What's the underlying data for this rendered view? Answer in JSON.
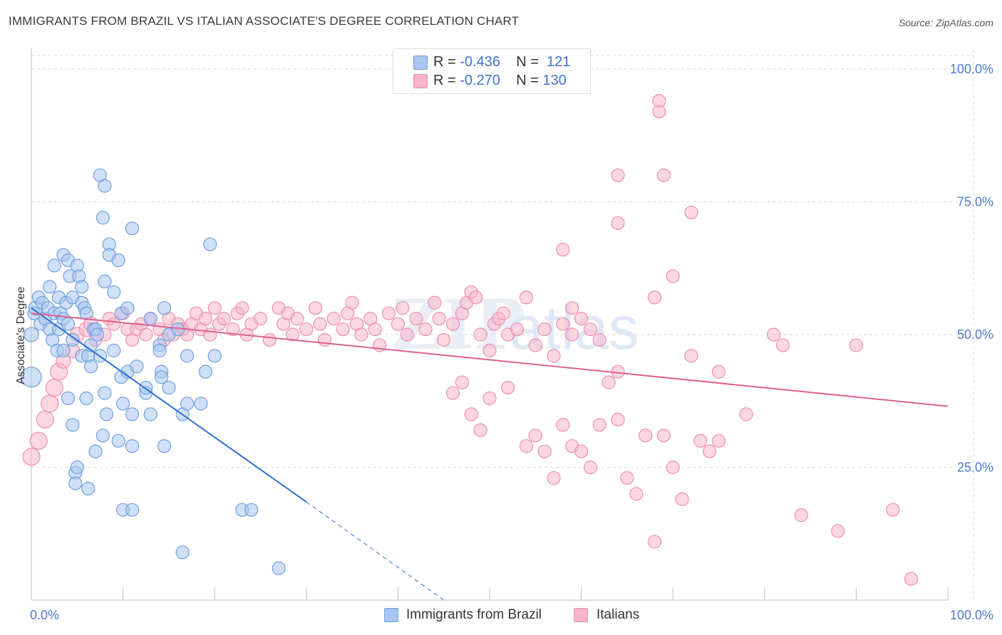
{
  "title": "IMMIGRANTS FROM BRAZIL VS ITALIAN ASSOCIATE'S DEGREE CORRELATION CHART",
  "source": "Source: ZipAtlas.com",
  "watermark": {
    "zip": "ZIP",
    "atlas": "atlas"
  },
  "legend_top": {
    "row1": {
      "r_label": "R = ",
      "r_value": "-0.436",
      "n_label": "N = ",
      "n_value": "121"
    },
    "row2": {
      "r_label": "R = ",
      "r_value": "-0.270",
      "n_label": "N = ",
      "n_value": "130"
    }
  },
  "legend_bottom": {
    "series1": "Immigrants from Brazil",
    "series2": "Italians"
  },
  "colors": {
    "blue_fill": "#a8c6ef",
    "blue_stroke": "#6f9ee0",
    "blue_line": "#2e6fd4",
    "pink_fill": "#f7b6cb",
    "pink_stroke": "#ec8fb0",
    "pink_line": "#e0608e",
    "axis_text": "#4a7bd0",
    "grid": "#d9d9d9"
  },
  "chart_data": {
    "type": "scatter",
    "title": "IMMIGRANTS FROM BRAZIL VS ITALIAN ASSOCIATE'S DEGREE CORRELATION CHART",
    "xlabel": "",
    "ylabel": "Associate's Degree",
    "xlim": [
      0,
      100
    ],
    "ylim": [
      0,
      100
    ],
    "x_tick_labels": {
      "left": "0.0%",
      "right": "100.0%"
    },
    "y_tick_labels": [
      "100.0%",
      "75.0%",
      "50.0%",
      "25.0%"
    ],
    "y_tick_values": [
      100,
      75,
      50,
      25
    ],
    "series": [
      {
        "name": "Immigrants from Brazil",
        "R": -0.436,
        "N": 121,
        "trend": {
          "x0": 0,
          "y0": 55,
          "x1": 30,
          "y1": 18.5,
          "dash_x1": 45,
          "dash_y1": 0
        },
        "points": [
          [
            0,
            42,
            14
          ],
          [
            0,
            50,
            10
          ],
          [
            0.3,
            54,
            9
          ],
          [
            0.5,
            55,
            10
          ],
          [
            0.8,
            57,
            9
          ],
          [
            1,
            52,
            9
          ],
          [
            1.2,
            56,
            9
          ],
          [
            1.5,
            53,
            9
          ],
          [
            1.8,
            55,
            9
          ],
          [
            2,
            51,
            9
          ],
          [
            2,
            59,
            9
          ],
          [
            2.3,
            49,
            9
          ],
          [
            2.5,
            54,
            9
          ],
          [
            2.5,
            63,
            9
          ],
          [
            2.8,
            47,
            9
          ],
          [
            3,
            51,
            9
          ],
          [
            3,
            57,
            9
          ],
          [
            3.2,
            54,
            9
          ],
          [
            3.5,
            47,
            9
          ],
          [
            3.5,
            53,
            9
          ],
          [
            3.5,
            65,
            9
          ],
          [
            3.8,
            56,
            9
          ],
          [
            4,
            38,
            9
          ],
          [
            4,
            64,
            9
          ],
          [
            4,
            52,
            9
          ],
          [
            4.2,
            61,
            9
          ],
          [
            4.5,
            57,
            9
          ],
          [
            4.5,
            33,
            9
          ],
          [
            4.5,
            49,
            9
          ],
          [
            4.8,
            24,
            9
          ],
          [
            4.8,
            22,
            9
          ],
          [
            5,
            25,
            9
          ],
          [
            5,
            63,
            9
          ],
          [
            5.2,
            61,
            9
          ],
          [
            5.5,
            59,
            9
          ],
          [
            5.5,
            46,
            9
          ],
          [
            5.5,
            56,
            9
          ],
          [
            5.8,
            55,
            9
          ],
          [
            6,
            54,
            9
          ],
          [
            6,
            38,
            9
          ],
          [
            6.2,
            46,
            9
          ],
          [
            6.2,
            21,
            9
          ],
          [
            6.5,
            48,
            9
          ],
          [
            6.5,
            44,
            9
          ],
          [
            6.8,
            51,
            9
          ],
          [
            7,
            51,
            9
          ],
          [
            7,
            28,
            9
          ],
          [
            7.2,
            50,
            9
          ],
          [
            7.5,
            46,
            9
          ],
          [
            7.5,
            80,
            9
          ],
          [
            7.8,
            31,
            9
          ],
          [
            7.8,
            72,
            9
          ],
          [
            8,
            78,
            9
          ],
          [
            8,
            60,
            9
          ],
          [
            8,
            39,
            9
          ],
          [
            8.2,
            35,
            9
          ],
          [
            8.5,
            67,
            9
          ],
          [
            8.5,
            65,
            9
          ],
          [
            9,
            47,
            9
          ],
          [
            9,
            58,
            9
          ],
          [
            9.5,
            64,
            9
          ],
          [
            9.5,
            30,
            9
          ],
          [
            9.8,
            54,
            9
          ],
          [
            9.8,
            42,
            9
          ],
          [
            10,
            17,
            9
          ],
          [
            10,
            37,
            9
          ],
          [
            10.5,
            55,
            9
          ],
          [
            10.5,
            43,
            9
          ],
          [
            11,
            35,
            9
          ],
          [
            11,
            70,
            9
          ],
          [
            11,
            29,
            9
          ],
          [
            11,
            17,
            9
          ],
          [
            11.5,
            44,
            9
          ],
          [
            12.5,
            39,
            9
          ],
          [
            12.5,
            40,
            9
          ],
          [
            13,
            35,
            9
          ],
          [
            13,
            53,
            9
          ],
          [
            14,
            48,
            9
          ],
          [
            14,
            47,
            9
          ],
          [
            14.2,
            43,
            9
          ],
          [
            14.2,
            42,
            9
          ],
          [
            14.5,
            55,
            9
          ],
          [
            14.5,
            29,
            9
          ],
          [
            15,
            50,
            9
          ],
          [
            15,
            40,
            9
          ],
          [
            16,
            51,
            9
          ],
          [
            16.5,
            35,
            9
          ],
          [
            16.5,
            9,
            9
          ],
          [
            17,
            46,
            9
          ],
          [
            17,
            37,
            9
          ],
          [
            18.5,
            37,
            9
          ],
          [
            19,
            43,
            9
          ],
          [
            19.5,
            67,
            9
          ],
          [
            20,
            46,
            9
          ],
          [
            23,
            17,
            9
          ],
          [
            24,
            17,
            9
          ],
          [
            27,
            6,
            9
          ]
        ]
      },
      {
        "name": "Italians",
        "R": -0.27,
        "N": 130,
        "trend": {
          "x0": 0,
          "y0": 54,
          "x1": 100,
          "y1": 36.5
        },
        "points": [
          [
            0,
            27,
            12
          ],
          [
            0.8,
            30,
            12
          ],
          [
            1.5,
            34,
            12
          ],
          [
            2,
            37,
            12
          ],
          [
            2.5,
            40,
            12
          ],
          [
            3,
            43,
            12
          ],
          [
            3.5,
            45,
            10
          ],
          [
            4.5,
            47,
            10
          ],
          [
            5,
            50,
            10
          ],
          [
            6,
            51,
            10
          ],
          [
            6.5,
            52,
            10
          ],
          [
            7,
            49,
            9
          ],
          [
            8,
            50,
            9
          ],
          [
            8.5,
            53,
            9
          ],
          [
            9,
            52,
            9
          ],
          [
            10,
            54,
            9
          ],
          [
            10.5,
            51,
            9
          ],
          [
            11,
            49,
            9
          ],
          [
            11.5,
            51,
            9
          ],
          [
            12,
            52,
            9
          ],
          [
            12.5,
            50,
            9
          ],
          [
            13,
            53,
            9
          ],
          [
            14,
            51,
            9
          ],
          [
            14.5,
            49,
            9
          ],
          [
            15,
            53,
            9
          ],
          [
            15.5,
            50,
            9
          ],
          [
            16,
            52,
            9
          ],
          [
            16.5,
            51,
            9
          ],
          [
            17,
            50,
            9
          ],
          [
            17.5,
            52,
            9
          ],
          [
            18,
            54,
            9
          ],
          [
            18.5,
            51,
            9
          ],
          [
            19,
            53,
            9
          ],
          [
            19.5,
            50,
            9
          ],
          [
            20,
            55,
            9
          ],
          [
            20.5,
            52,
            9
          ],
          [
            21,
            53,
            9
          ],
          [
            22,
            51,
            9
          ],
          [
            22.5,
            54,
            9
          ],
          [
            23,
            55,
            9
          ],
          [
            23.5,
            50,
            9
          ],
          [
            24,
            52,
            9
          ],
          [
            25,
            53,
            9
          ],
          [
            26,
            49,
            9
          ],
          [
            27,
            55,
            9
          ],
          [
            27.5,
            52,
            9
          ],
          [
            28,
            54,
            9
          ],
          [
            28.5,
            50,
            9
          ],
          [
            29,
            53,
            9
          ],
          [
            30,
            51,
            9
          ],
          [
            31,
            55,
            9
          ],
          [
            31.5,
            52,
            9
          ],
          [
            32,
            49,
            9
          ],
          [
            33,
            53,
            9
          ],
          [
            34,
            51,
            9
          ],
          [
            34.5,
            54,
            9
          ],
          [
            35,
            56,
            9
          ],
          [
            35.5,
            52,
            9
          ],
          [
            36,
            50,
            9
          ],
          [
            37,
            53,
            9
          ],
          [
            37.5,
            51,
            9
          ],
          [
            38,
            48,
            9
          ],
          [
            39,
            54,
            9
          ],
          [
            40,
            52,
            9
          ],
          [
            40.5,
            55,
            9
          ],
          [
            41,
            50,
            9
          ],
          [
            42,
            53,
            9
          ],
          [
            43,
            51,
            9
          ],
          [
            44,
            56,
            9
          ],
          [
            44.5,
            53,
            9
          ],
          [
            45,
            49,
            9
          ],
          [
            46,
            52,
            9
          ],
          [
            47,
            54,
            9
          ],
          [
            47.5,
            56,
            9
          ],
          [
            48,
            58,
            9
          ],
          [
            48.5,
            57,
            9
          ],
          [
            49,
            50,
            9
          ],
          [
            50,
            47,
            9
          ],
          [
            50.5,
            52,
            9
          ],
          [
            51,
            53,
            9
          ],
          [
            51.5,
            54,
            9
          ],
          [
            52,
            50,
            9
          ],
          [
            53,
            51,
            9
          ],
          [
            54,
            57,
            9
          ],
          [
            55,
            48,
            9
          ],
          [
            56,
            51,
            9
          ],
          [
            57,
            46,
            9
          ],
          [
            58,
            52,
            9
          ],
          [
            59,
            50,
            9
          ],
          [
            59,
            55,
            9
          ],
          [
            60,
            53,
            9
          ],
          [
            61,
            51,
            9
          ],
          [
            62,
            49,
            9
          ],
          [
            63,
            41,
            9
          ],
          [
            64,
            43,
            9
          ],
          [
            46,
            39,
            9
          ],
          [
            47,
            41,
            9
          ],
          [
            48,
            35,
            9
          ],
          [
            49,
            32,
            9
          ],
          [
            50,
            38,
            9
          ],
          [
            52,
            40,
            9
          ],
          [
            54,
            29,
            9
          ],
          [
            55,
            31,
            9
          ],
          [
            56,
            28,
            9
          ],
          [
            57,
            23,
            9
          ],
          [
            58,
            33,
            9
          ],
          [
            59,
            29,
            9
          ],
          [
            60,
            28,
            9
          ],
          [
            61,
            25,
            9
          ],
          [
            62,
            33,
            9
          ],
          [
            64,
            34,
            9
          ],
          [
            65,
            23,
            9
          ],
          [
            66,
            20,
            9
          ],
          [
            67,
            31,
            9
          ],
          [
            68,
            11,
            9
          ],
          [
            69,
            31,
            9
          ],
          [
            70,
            25,
            9
          ],
          [
            71,
            19,
            9
          ],
          [
            73,
            30,
            9
          ],
          [
            75,
            30,
            9
          ],
          [
            68,
            57,
            9
          ],
          [
            70,
            61,
            9
          ],
          [
            72,
            73,
            9
          ],
          [
            58,
            66,
            9
          ],
          [
            64,
            71,
            9
          ],
          [
            68.5,
            92,
            9
          ],
          [
            68.5,
            94,
            9
          ],
          [
            64,
            80,
            9
          ],
          [
            69,
            80,
            9
          ],
          [
            72,
            46,
            9
          ],
          [
            75,
            43,
            9
          ],
          [
            78,
            35,
            9
          ],
          [
            81,
            50,
            9
          ],
          [
            84,
            16,
            9
          ],
          [
            88,
            13,
            9
          ],
          [
            90,
            48,
            9
          ],
          [
            94,
            17,
            9
          ],
          [
            96,
            4,
            9
          ],
          [
            82,
            48,
            9
          ],
          [
            74,
            28,
            9
          ]
        ]
      }
    ]
  }
}
